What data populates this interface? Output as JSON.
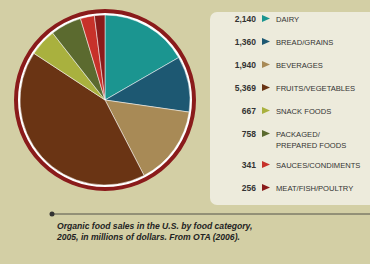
{
  "chart_data": {
    "type": "pie",
    "title": "Organic food sales in the U.S. by food category, 2005, in millions of dollars. From OTA (2006).",
    "categories": [
      "DAIRY",
      "BREAD/GRAINS",
      "BEVERAGES",
      "FRUITS/VEGETABLES",
      "SNACK FOODS",
      "PACKAGED/PREPARED FOODS",
      "SAUCES/CONDIMENTS",
      "MEAT/FISH/POULTRY"
    ],
    "values": [
      2140,
      1360,
      1940,
      5369,
      667,
      758,
      341,
      256
    ],
    "value_labels": [
      "2,140",
      "1,360",
      "1,940",
      "5,369",
      "667",
      "758",
      "341",
      "256"
    ],
    "colors": [
      "#1b9590",
      "#1d5872",
      "#a88a56",
      "#6a3414",
      "#a9b13e",
      "#5b6a2f",
      "#c7312a",
      "#8a1b1b"
    ],
    "legend": "right"
  }
}
